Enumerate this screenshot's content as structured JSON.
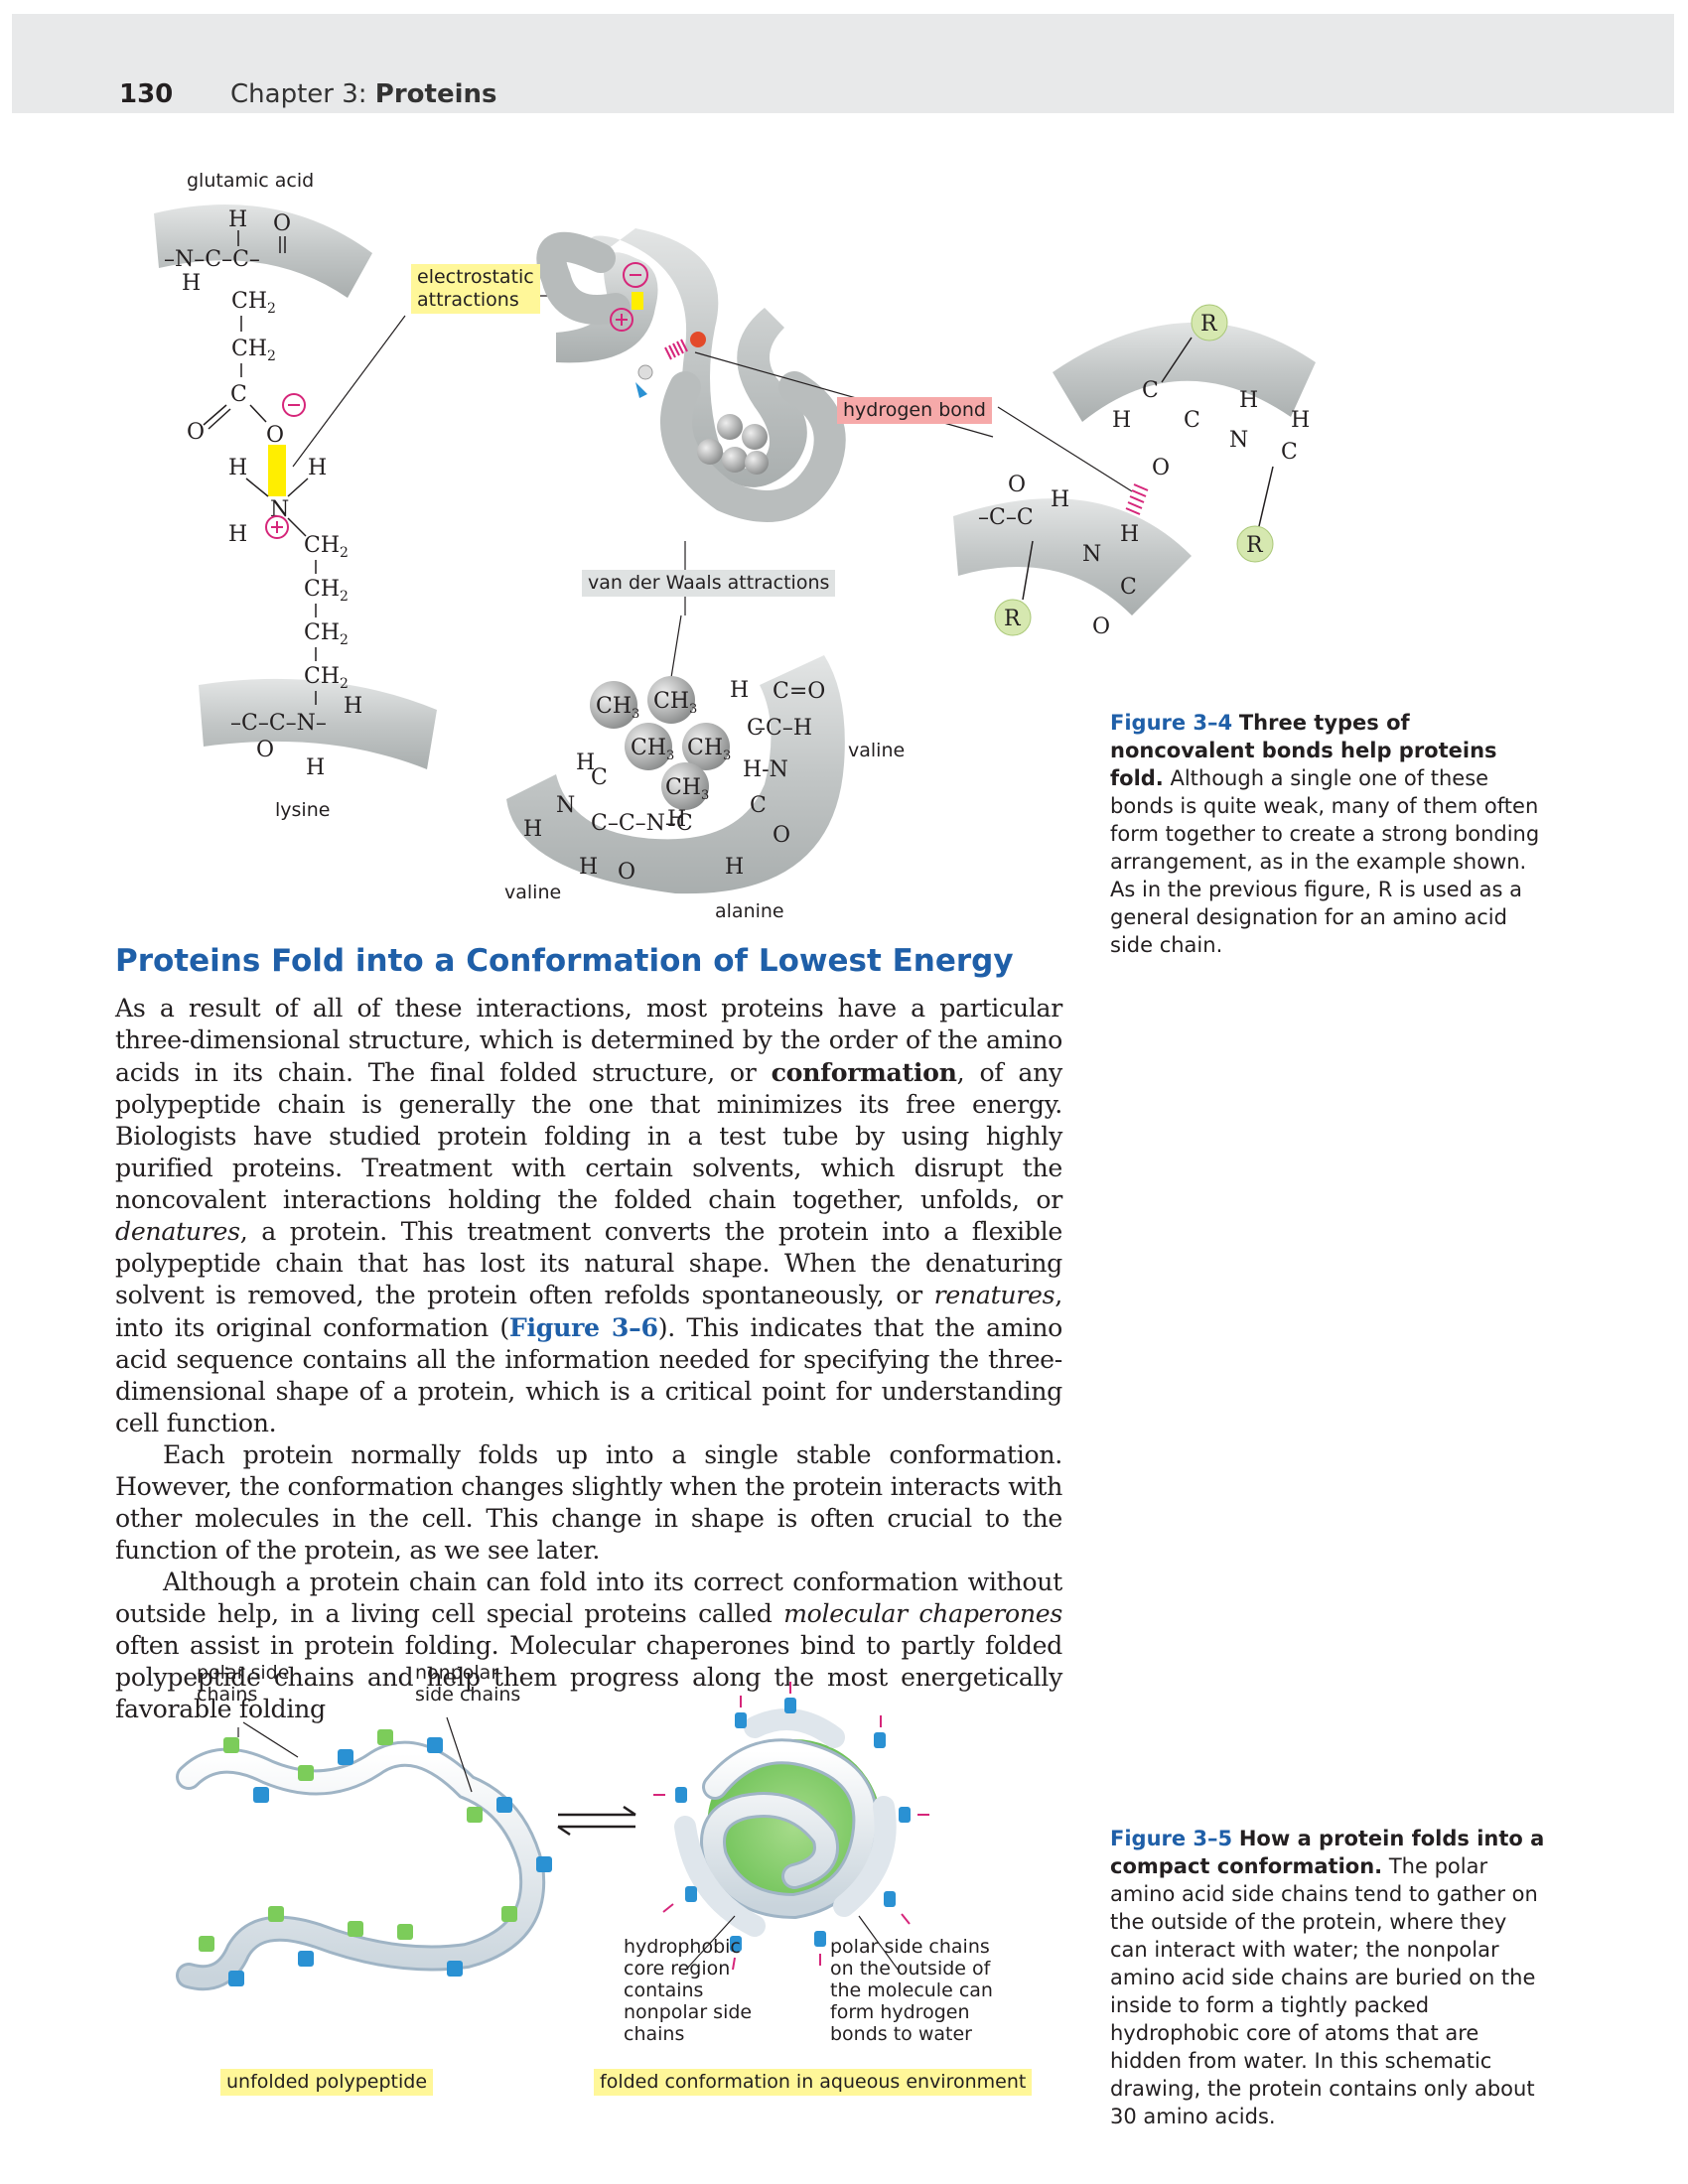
{
  "header": {
    "page_number": "130",
    "chapter_prefix": "Chapter 3: ",
    "chapter_name": "Proteins"
  },
  "fig34": {
    "label_glutamic": "glutamic acid",
    "label_lysine": "lysine",
    "label_electrostatic": "electrostatic attractions",
    "label_hbond": "hydrogen bond",
    "label_vdw": "van der Waals attractions",
    "label_valine_right": "valine",
    "label_valine_left": "valine",
    "label_alanine": "alanine",
    "caption_fig": "Figure 3–4",
    "caption_title": "Three types of noncovalent bonds help proteins fold.",
    "caption_text": "Although a single one of these bonds is quite weak, many of them often form together to create a strong bonding arrangement, as in the example shown. As in the previous figure, R is used as a general designation for an amino acid side chain."
  },
  "section": {
    "title": "Proteins Fold into a Conformation of Lowest Energy",
    "p1_a": "As a result of all of these interactions, most proteins have a particular three-dimensional structure, which is determined by the order of the amino acids in its chain. The final folded structure, or ",
    "p1_b": "conformation",
    "p1_c": ", of any polypeptide chain is generally the one that minimizes its free energy. Biologists have studied protein folding in a test tube by using highly purified proteins. Treatment with certain solvents, which disrupt the noncovalent interactions holding the folded chain together, unfolds, or ",
    "p1_d": "denatures",
    "p1_e": ", a protein. This treatment converts the protein into a flexible polypeptide chain that has lost its natural shape. When the denaturing solvent is removed, the protein often refolds spontaneously, or ",
    "p1_f": "renatures",
    "p1_g": ", into its original conformation (",
    "p1_h": "Figure 3–6",
    "p1_i": "). This indicates that the amino acid sequence contains all the information needed for specifying the three-dimensional shape of a protein, which is a critical point for understanding cell function.",
    "p2": "Each protein normally folds up into a single stable conformation. However, the conformation changes slightly when the protein interacts with other molecules in the cell. This change in shape is often crucial to the function of the protein, as we see later.",
    "p3_a": "Although a protein chain can fold into its correct conformation without outside help, in a living cell special proteins called ",
    "p3_b": "molecular chaperones",
    "p3_c": " often assist in protein folding. Molecular chaperones bind to partly folded polypeptide chains and help them progress along the most energetically favorable folding"
  },
  "fig35": {
    "label_polar": "polar side chains",
    "label_nonpolar": "nonpolar side chains",
    "label_core": "hydrophobic core region contains nonpolar side chains",
    "label_outside": "polar side chains on the outside of the molecule can form hydrogen bonds to water",
    "tag_unfolded": "unfolded polypeptide",
    "tag_folded": "folded conformation in aqueous environment",
    "caption_fig": "Figure 3–5",
    "caption_title": "How a protein folds into a compact conformation.",
    "caption_text": "The polar amino acid side chains tend to gather on the outside of the protein, where they can interact with water; the nonpolar amino acid side chains are buried on the inside to form a tightly packed hydrophobic core of atoms that are hidden from water. In this schematic drawing, the protein contains only about 30 amino acids."
  },
  "colors": {
    "accent_blue": "#1f5fa8",
    "highlight_yellow": "#fff799",
    "highlight_pink": "#f6a9a9",
    "tube_gray": "#c9cccc"
  }
}
